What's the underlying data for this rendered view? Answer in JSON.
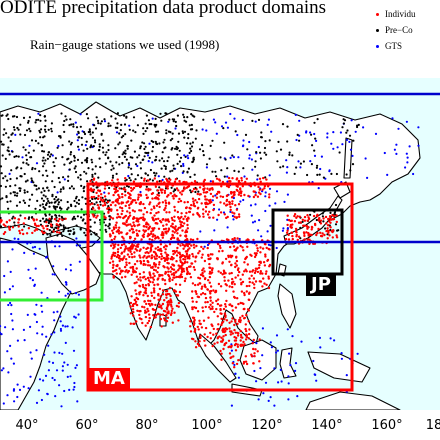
{
  "title": "ODITE precipitation data product domains",
  "subtitle": "Rain−gauge stations we used (1998)",
  "legend": [
    {
      "label": "Individu",
      "color": "#ff0000"
    },
    {
      "label": "Pre−Co",
      "color": "#000000"
    },
    {
      "label": "GTS",
      "color": "#0000ff"
    }
  ],
  "x_ticks": [
    "40°",
    "60°",
    "80°",
    "100°",
    "120°",
    "140°",
    "160°",
    "18"
  ],
  "domains": [
    {
      "label": "MA",
      "color": "#ff0000"
    },
    {
      "label": "JP",
      "color": "#000000"
    }
  ],
  "colors": {
    "ocean": "#e6ffff",
    "land": "#ffffff",
    "coast": "#000000",
    "lat_line": "#0000cc",
    "green_box": "#33ee33"
  }
}
